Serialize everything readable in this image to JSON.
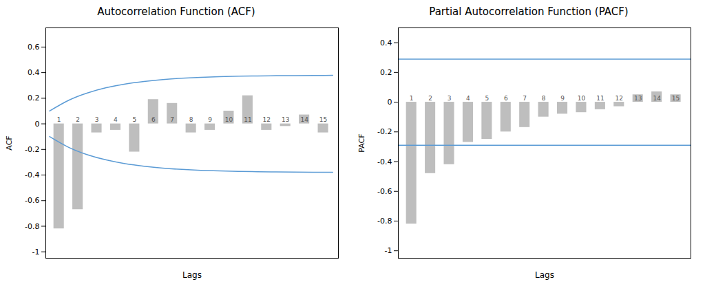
{
  "chart_data": [
    {
      "type": "bar",
      "title": "Autocorrelation Function (ACF)",
      "x_label": "Lags",
      "y_label": "ACF",
      "x": [
        1,
        2,
        3,
        4,
        5,
        6,
        7,
        8,
        9,
        10,
        11,
        12,
        13,
        14,
        15
      ],
      "values": [
        -0.82,
        -0.67,
        -0.07,
        -0.05,
        -0.22,
        0.19,
        0.16,
        -0.07,
        -0.05,
        0.1,
        0.22,
        -0.05,
        -0.02,
        0.07,
        -0.07
      ],
      "color": "#bebebe",
      "xlim": [
        0.3,
        15.8
      ],
      "ylim": [
        -1.05,
        0.75
      ],
      "yticks": [
        -1,
        -0.8,
        -0.6,
        -0.4,
        -0.2,
        0,
        0.2,
        0.4,
        0.6
      ],
      "tick_labels": "y",
      "grid": false,
      "confidence_interval": {
        "color": "#5b9bd5",
        "x": [
          0.5,
          1.5,
          2.5,
          3.5,
          4.5,
          5.5,
          6.5,
          7.5,
          8.5,
          9.5,
          10.5,
          11.5,
          12.5,
          13.5,
          14.5,
          15.5
        ],
        "upper": [
          0.1,
          0.183,
          0.241,
          0.282,
          0.311,
          0.331,
          0.346,
          0.356,
          0.363,
          0.368,
          0.372,
          0.374,
          0.376,
          0.377,
          0.378,
          0.379
        ],
        "lower": [
          -0.1,
          -0.183,
          -0.241,
          -0.282,
          -0.311,
          -0.331,
          -0.346,
          -0.356,
          -0.363,
          -0.368,
          -0.372,
          -0.374,
          -0.376,
          -0.377,
          -0.378,
          -0.379
        ]
      }
    },
    {
      "type": "bar",
      "title": "Partial Autocorrelation Function (PACF)",
      "x_label": "Lags",
      "y_label": "PACF",
      "x": [
        1,
        2,
        3,
        4,
        5,
        6,
        7,
        8,
        9,
        10,
        11,
        12,
        13,
        14,
        15
      ],
      "values": [
        -0.82,
        -0.48,
        -0.42,
        -0.27,
        -0.25,
        -0.2,
        -0.17,
        -0.1,
        -0.08,
        -0.07,
        -0.05,
        -0.03,
        0.05,
        0.07,
        0.05
      ],
      "color": "#bebebe",
      "xlim": [
        0.3,
        15.8
      ],
      "ylim": [
        -1.05,
        0.5
      ],
      "yticks": [
        -1,
        -0.8,
        -0.6,
        -0.4,
        -0.2,
        0,
        0.2,
        0.4
      ],
      "tick_labels": "y",
      "grid": false,
      "confidence_interval": {
        "color": "#5b9bd5",
        "upper": 0.29,
        "lower": -0.29
      }
    }
  ]
}
